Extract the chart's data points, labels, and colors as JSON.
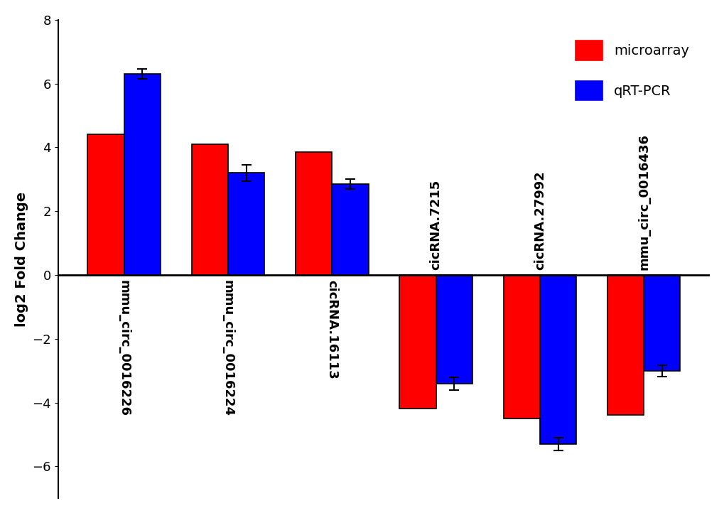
{
  "categories": [
    "mmu_circ_0016226",
    "mmu_circ_0016224",
    "cicRNA.16113",
    "cicRNA.7215",
    "cicRNA.27992",
    "mmu_circ_0016436"
  ],
  "microarray_values": [
    4.4,
    4.1,
    3.85,
    -4.2,
    -4.5,
    -4.4
  ],
  "qrtpcr_values": [
    6.3,
    3.2,
    2.85,
    -3.4,
    -5.3,
    -3.0
  ],
  "qrtpcr_errors": [
    0.15,
    0.25,
    0.15,
    0.2,
    0.2,
    0.18
  ],
  "microarray_color": "#FF0000",
  "qrtpcr_color": "#0000FF",
  "ylabel": "log2 Fold Change",
  "ylim": [
    -7,
    8
  ],
  "yticks": [
    -6,
    -4,
    -2,
    0,
    2,
    4,
    6,
    8
  ],
  "bar_width": 0.35,
  "legend_labels": [
    "microarray",
    "qRT-PCR"
  ],
  "background_color": "#FFFFFF",
  "label_fontsize": 14,
  "tick_fontsize": 13,
  "legend_fontsize": 14,
  "positive_indices": [
    0,
    1,
    2
  ],
  "negative_indices": [
    3,
    4,
    5
  ]
}
